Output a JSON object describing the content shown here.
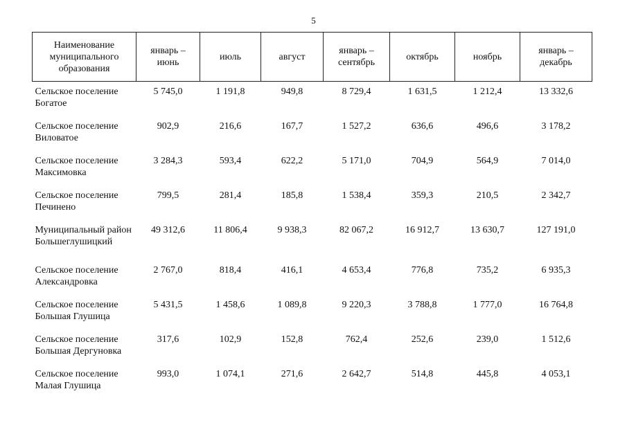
{
  "page_number": "5",
  "table": {
    "headers": [
      "Наименование муниципального образования",
      "январь – июнь",
      "июль",
      "август",
      "январь – сентябрь",
      "октябрь",
      "ноябрь",
      "январь – декабрь"
    ],
    "rows": [
      {
        "name": "Сельское поселение Богатое",
        "values": [
          "5 745,0",
          "1 191,8",
          "949,8",
          "8 729,4",
          "1 631,5",
          "1 212,4",
          "13 332,6"
        ]
      },
      {
        "name": "Сельское поселение Виловатое",
        "values": [
          "902,9",
          "216,6",
          "167,7",
          "1 527,2",
          "636,6",
          "496,6",
          "3 178,2"
        ]
      },
      {
        "name": "Сельское поселение Максимовка",
        "values": [
          "3 284,3",
          "593,4",
          "622,2",
          "5 171,0",
          "704,9",
          "564,9",
          "7 014,0"
        ]
      },
      {
        "name": "Сельское поселение Печинено",
        "values": [
          "799,5",
          "281,4",
          "185,8",
          "1 538,4",
          "359,3",
          "210,5",
          "2 342,7"
        ]
      },
      {
        "name": "Муниципальный район Большеглушицкий",
        "values": [
          "49 312,6",
          "11 806,4",
          "9 938,3",
          "82 067,2",
          "16 912,7",
          "13 630,7",
          "127 191,0"
        ]
      },
      {
        "name": "Сельское поселение Александровка",
        "values": [
          "2 767,0",
          "818,4",
          "416,1",
          "4 653,4",
          "776,8",
          "735,2",
          "6 935,3"
        ]
      },
      {
        "name": "Сельское поселение Большая Глушица",
        "values": [
          "5 431,5",
          "1 458,6",
          "1 089,8",
          "9 220,3",
          "3 788,8",
          "1 777,0",
          "16 764,8"
        ]
      },
      {
        "name": "Сельское поселение Большая Дергуновка",
        "values": [
          "317,6",
          "102,9",
          "152,8",
          "762,4",
          "252,6",
          "239,0",
          "1 512,6"
        ]
      },
      {
        "name": "Сельское поселение Малая Глушица",
        "values": [
          "993,0",
          "1 074,1",
          "271,6",
          "2 642,7",
          "514,8",
          "445,8",
          "4 053,1"
        ]
      }
    ]
  }
}
